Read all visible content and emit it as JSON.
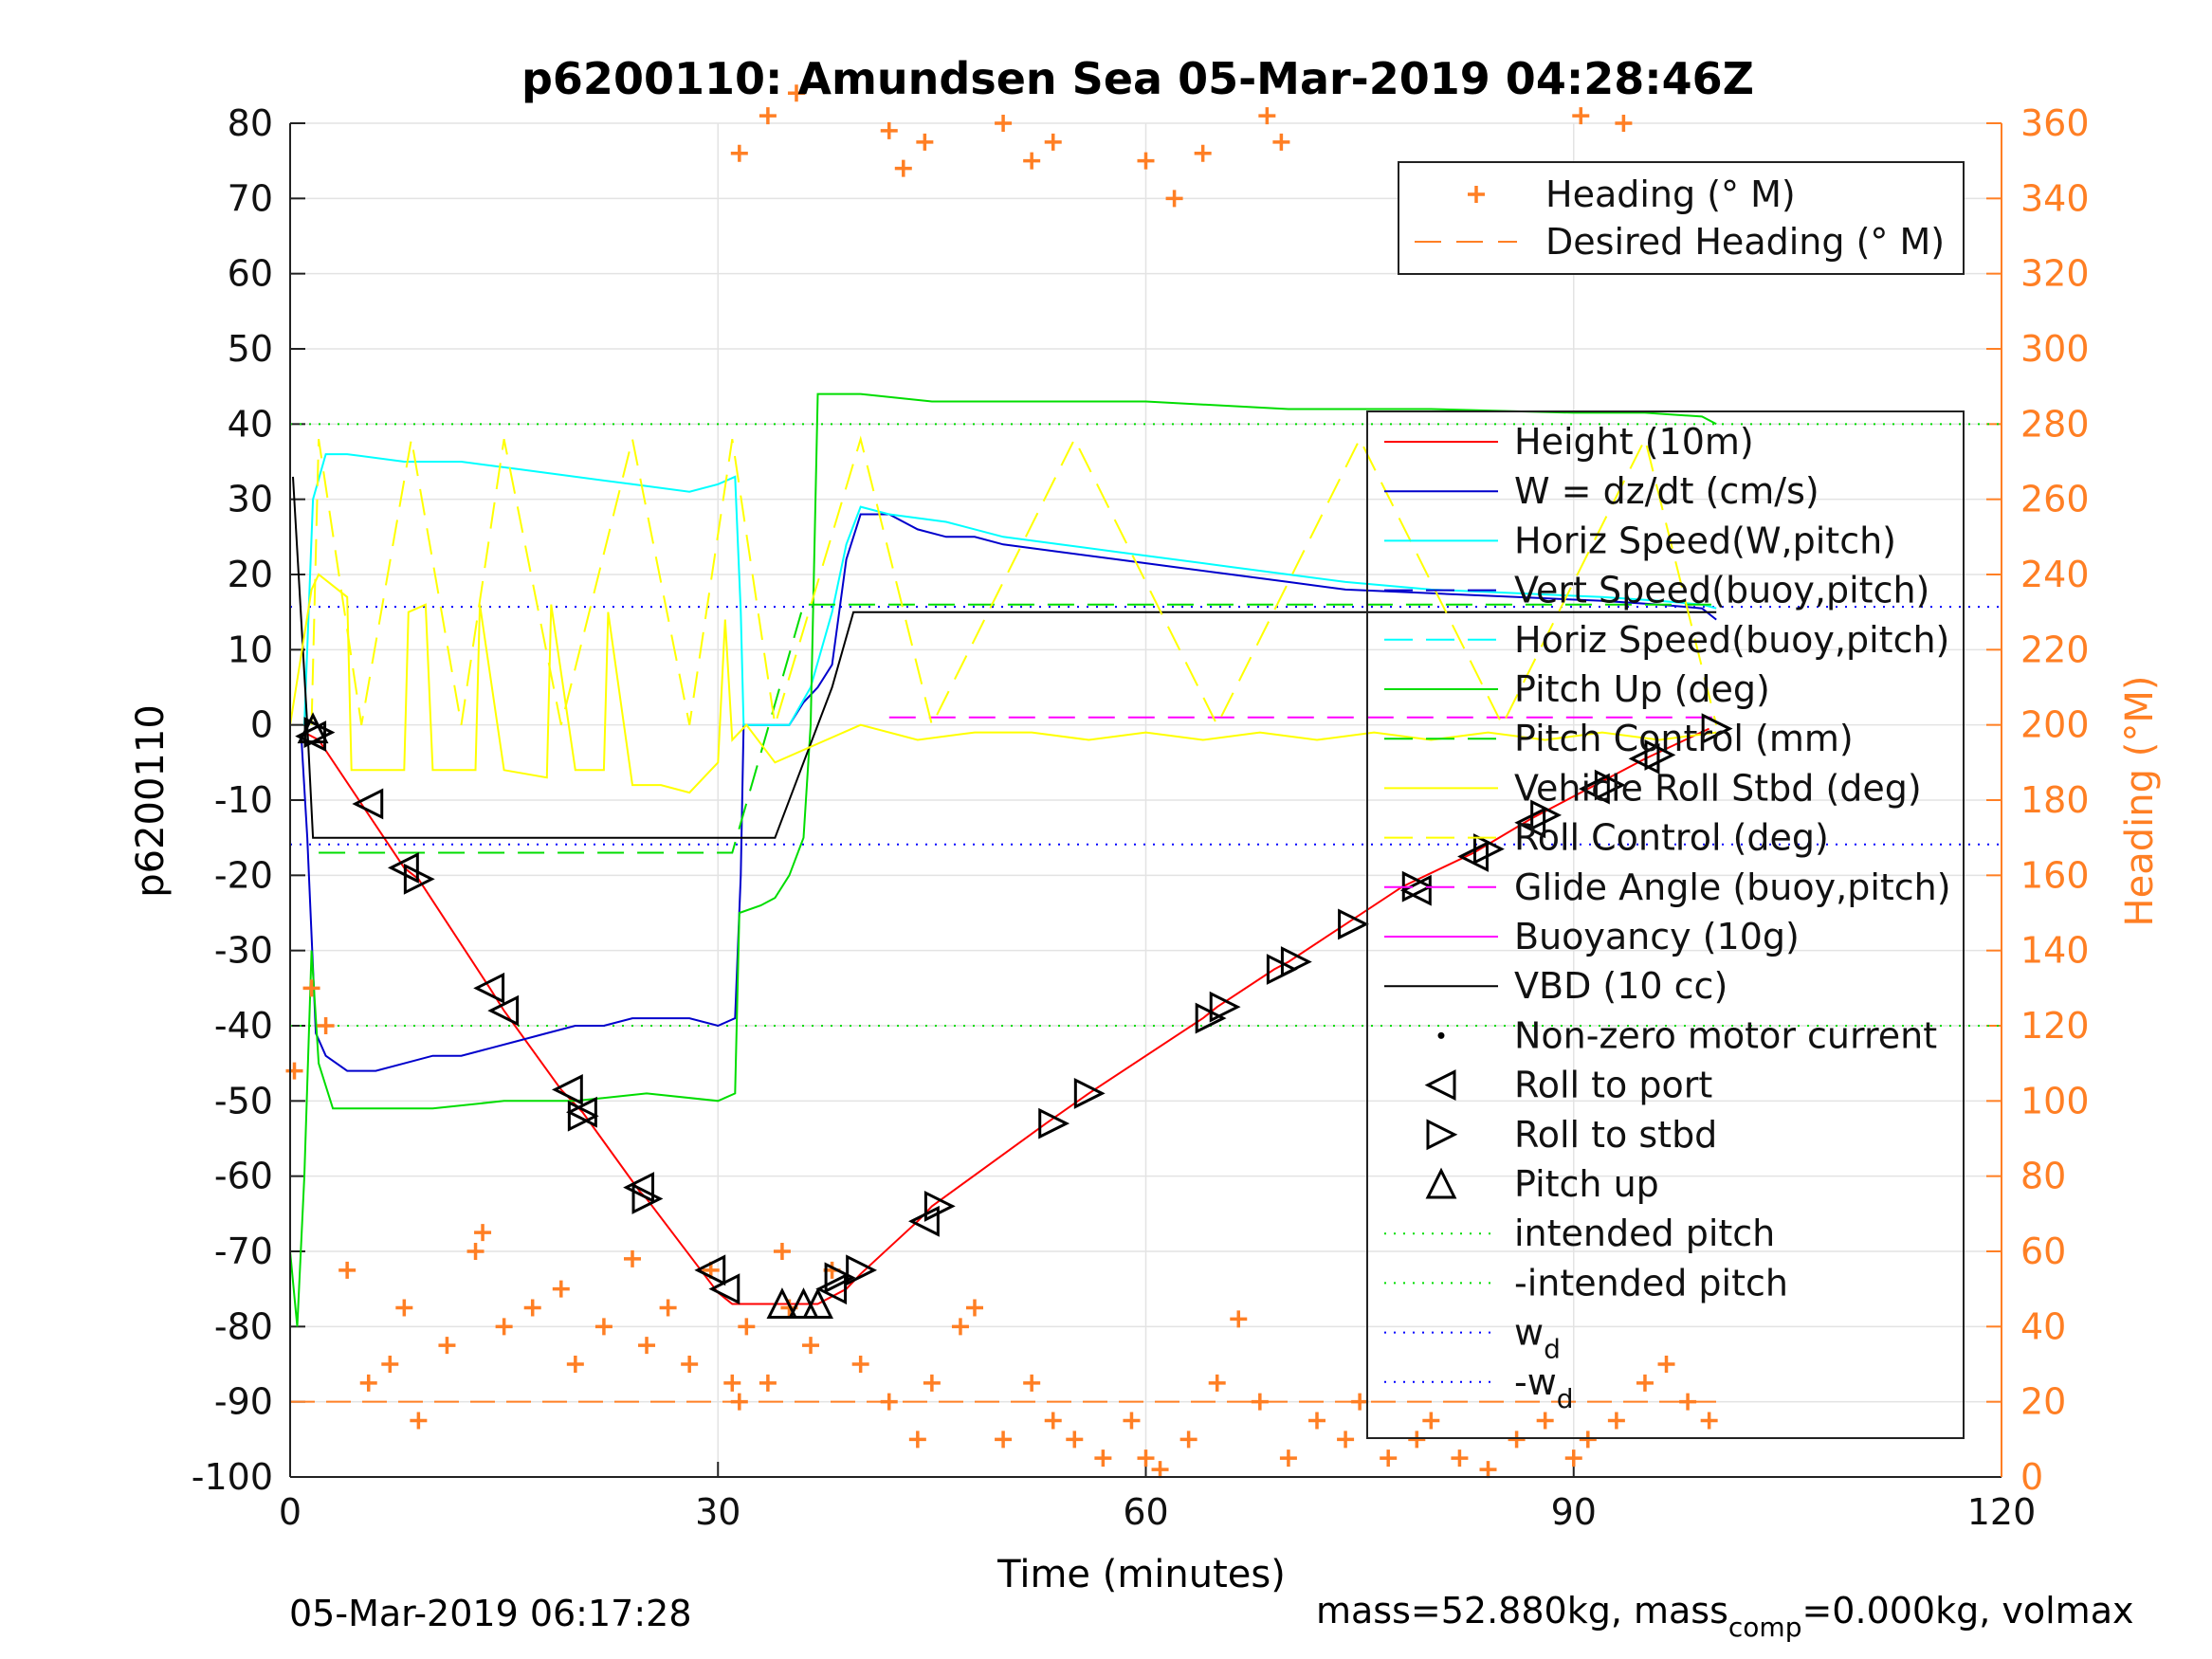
{
  "chart_data": {
    "type": "line",
    "title": "p6200110: Amundsen Sea 05-Mar-2019 04:28:46Z",
    "xlabel": "Time (minutes)",
    "ylabel": "p6200110",
    "y2label": "Heading (°M)",
    "xlim": [
      0,
      120
    ],
    "ylim": [
      -100,
      80
    ],
    "y2lim": [
      0,
      360
    ],
    "xticks": [
      "0",
      "30",
      "60",
      "90",
      "120"
    ],
    "yticks": [
      "80",
      "70",
      "60",
      "50",
      "40",
      "30",
      "20",
      "10",
      "0",
      "-10",
      "-20",
      "-30",
      "-40",
      "-50",
      "-60",
      "-70",
      "-80",
      "-90",
      "-100"
    ],
    "y2ticks": [
      "360",
      "340",
      "320",
      "300",
      "280",
      "260",
      "240",
      "220",
      "200",
      "180",
      "160",
      "140",
      "120",
      "100",
      "80",
      "60",
      "40",
      "20",
      "0"
    ],
    "grid": true,
    "footer_left": "05-Mar-2019 06:17:28",
    "footer_right": {
      "part1": "mass=52.880kg, mass",
      "sub": "comp",
      "part2": "=0.000kg, volmax"
    },
    "heading_legend": {
      "placement": "top-right",
      "entries": [
        {
          "label": "Heading (° M)",
          "color": "#ff7f24",
          "style": "plus"
        },
        {
          "label": "Desired Heading (° M)",
          "color": "#ff7f24",
          "style": "dash"
        }
      ]
    },
    "main_legend": {
      "placement": "right",
      "entries": [
        {
          "label": "Height (10m)",
          "color": "#ff0000",
          "style": "line"
        },
        {
          "label": "W = dz/dt (cm/s)",
          "color": "#0000cc",
          "style": "line"
        },
        {
          "label": "Horiz Speed(W,pitch)",
          "color": "#00ffff",
          "style": "line"
        },
        {
          "label": "Vert Speed(buoy,pitch)",
          "color": "#0000cc",
          "style": "dash"
        },
        {
          "label": "Horiz Speed(buoy,pitch)",
          "color": "#00ffff",
          "style": "dash"
        },
        {
          "label": "Pitch Up (deg)",
          "color": "#00dd00",
          "style": "line"
        },
        {
          "label": "Pitch Control (mm)",
          "color": "#00dd00",
          "style": "dash"
        },
        {
          "label": "Vehicle Roll Stbd (deg)",
          "color": "#ffff00",
          "style": "line"
        },
        {
          "label": "Roll Control (deg)",
          "color": "#ffff00",
          "style": "dash"
        },
        {
          "label": "Glide Angle (buoy,pitch)",
          "color": "#ff00ff",
          "style": "dash"
        },
        {
          "label": "Buoyancy (10g)",
          "color": "#ff00ff",
          "style": "line"
        },
        {
          "label": "VBD (10 cc)",
          "color": "#000000",
          "style": "line"
        },
        {
          "label": "Non-zero motor current",
          "color": "#000000",
          "style": "dot"
        },
        {
          "label": "Roll to port",
          "color": "#000000",
          "style": "tri-left"
        },
        {
          "label": "Roll to stbd",
          "color": "#000000",
          "style": "tri-right"
        },
        {
          "label": "Pitch up",
          "color": "#000000",
          "style": "tri-up"
        },
        {
          "label": "intended pitch",
          "color": "#00dd00",
          "style": "dot-line"
        },
        {
          "label": "-intended pitch",
          "color": "#00dd00",
          "style": "dot-line"
        },
        {
          "label": "w",
          "sub": "d",
          "color": "#0000ff",
          "style": "dot-line"
        },
        {
          "label": "-w",
          "sub": "d",
          "color": "#0000ff",
          "style": "dot-line"
        }
      ]
    },
    "reference_lines": [
      {
        "name": "intended pitch",
        "y": 40,
        "color": "#00dd00"
      },
      {
        "name": "-intended pitch",
        "y": -40,
        "color": "#00dd00"
      },
      {
        "name": "w_d",
        "y": 15.7,
        "color": "#0000ff"
      },
      {
        "name": "-w_d",
        "y": -15.9,
        "color": "#0000ff"
      }
    ],
    "series": [
      {
        "name": "Height (10m)",
        "color": "#ff0000",
        "x": [
          1.0,
          2,
          5,
          8,
          9,
          14,
          15,
          19,
          20.5,
          24.5,
          25,
          29,
          30,
          31,
          35,
          37,
          39,
          40,
          44,
          45,
          53,
          56,
          64,
          65,
          69,
          70,
          74,
          78,
          83,
          87,
          91,
          95,
          99.5
        ],
        "y": [
          -1,
          -2,
          -10.5,
          -19,
          -20.5,
          -35,
          -38,
          -48.5,
          -51.5,
          -62,
          -63,
          -73,
          -75.5,
          -77,
          -77,
          -77,
          -75,
          -73,
          -66,
          -64,
          -53,
          -49,
          -39,
          -37.5,
          -32.5,
          -31.5,
          -26.5,
          -21.5,
          -17,
          -12.5,
          -8.5,
          -4.5,
          -0.5
        ]
      },
      {
        "name": "W = dz/dt (cm/s)",
        "color": "#0000cc",
        "x": [
          0.8,
          1.2,
          1.8,
          2.5,
          4,
          6,
          8,
          10,
          12,
          14,
          16,
          18,
          20,
          22,
          24,
          26,
          28,
          30,
          31.2,
          31.6,
          31.8,
          33,
          35,
          36,
          37,
          38,
          39,
          40,
          42,
          44,
          46,
          48,
          50,
          54,
          58,
          62,
          66,
          70,
          74,
          80,
          86,
          92,
          96,
          99,
          100
        ],
        "y": [
          -2,
          -15,
          -41,
          -44,
          -46,
          -46,
          -45,
          -44,
          -44,
          -43,
          -42,
          -41,
          -40,
          -40,
          -39,
          -39,
          -39,
          -40,
          -39,
          -20,
          0,
          0,
          0,
          3,
          5,
          8,
          22,
          28,
          28,
          26,
          25,
          25,
          24,
          23,
          22,
          21,
          20,
          19,
          18,
          17.5,
          17,
          16.5,
          16,
          15.5,
          14
        ]
      },
      {
        "name": "Horiz Speed(W,pitch)",
        "color": "#00ffff",
        "x": [
          1.0,
          1.6,
          2.5,
          4,
          8,
          12,
          16,
          20,
          24,
          28,
          30,
          31.2,
          31.6,
          31.8,
          33,
          35,
          36.5,
          38,
          39,
          40,
          42,
          46,
          50,
          54,
          58,
          62,
          66,
          70,
          74,
          80,
          86,
          92,
          96,
          99,
          100
        ],
        "y": [
          0,
          30,
          36,
          36,
          35,
          35,
          34,
          33,
          32,
          31,
          32,
          33,
          15,
          0,
          0,
          0,
          5,
          15,
          24,
          29,
          28,
          27,
          25,
          24,
          23,
          22,
          21,
          20,
          19,
          18,
          17.5,
          17,
          16.5,
          16,
          15.5
        ]
      },
      {
        "name": "Pitch Up (deg)",
        "color": "#00dd00",
        "x": [
          0.0,
          0.5,
          1.0,
          1.5,
          2.0,
          3,
          5,
          10,
          15,
          20,
          25,
          30,
          31.2,
          31.5,
          33,
          34,
          35,
          36,
          36.5,
          37,
          38,
          40,
          45,
          50,
          60,
          70,
          80,
          90,
          95,
          99,
          100
        ],
        "y": [
          -70,
          -80,
          -60,
          -30,
          -45,
          -51,
          -51,
          -51,
          -50,
          -50,
          -49,
          -50,
          -49,
          -25,
          -24,
          -23,
          -20,
          -15,
          0,
          44,
          44,
          44,
          43,
          43,
          43,
          42,
          42,
          41.5,
          41.5,
          41,
          40
        ]
      },
      {
        "name": "Pitch Control (mm)",
        "color": "#00dd00",
        "style": "dash",
        "x": [
          2,
          31,
          36,
          100
        ],
        "y": [
          -17,
          -17,
          16,
          16
        ]
      },
      {
        "name": "VBD (10 cc)",
        "color": "#000000",
        "x": [
          0.2,
          1.2,
          1.6,
          34,
          36,
          38,
          39.5,
          100
        ],
        "y": [
          33,
          0,
          -15,
          -15,
          -5,
          5,
          15,
          15
        ]
      },
      {
        "name": "Glide Angle (buoy,pitch)",
        "color": "#ff00ff",
        "style": "dash",
        "x": [
          42,
          100
        ],
        "y": [
          1,
          1
        ]
      },
      {
        "name": "Vehicle Roll Stbd (deg)",
        "color": "#ffff00",
        "x": [
          0,
          1.5,
          2,
          4,
          4.3,
          6,
          8,
          8.3,
          9.5,
          10,
          13,
          13.3,
          15,
          18,
          18.3,
          20,
          22,
          22.3,
          24,
          26,
          28,
          30,
          30.5,
          31,
          32,
          34,
          40,
          44,
          48,
          52,
          56,
          60,
          64,
          68,
          72,
          76,
          80,
          84,
          88,
          92,
          96,
          100
        ],
        "y": [
          0,
          18,
          20,
          17,
          -6,
          -6,
          -6,
          15,
          16,
          -6,
          -6,
          16,
          -6,
          -7,
          16,
          -6,
          -6,
          15,
          -8,
          -8,
          -9,
          -5,
          14,
          -2,
          0,
          -5,
          0,
          -2,
          -1,
          -1,
          -2,
          -1,
          -2,
          -1,
          -2,
          -1,
          -2,
          -1,
          -2,
          -1,
          -2,
          -1
        ]
      },
      {
        "name": "Roll Control (deg)",
        "color": "#ffff00",
        "style": "dash",
        "x": [
          1.5,
          2,
          5,
          8.5,
          12,
          15,
          19,
          24,
          28,
          31,
          34,
          40,
          45,
          55,
          65,
          75,
          85,
          95,
          100
        ],
        "y": [
          0,
          38,
          0,
          38,
          0,
          38,
          0,
          38,
          0,
          38,
          0,
          38,
          0,
          38,
          0,
          38,
          0,
          38,
          0
        ]
      },
      {
        "name": "Heading (° M)",
        "axis": "y2",
        "color": "#ff7f24",
        "style": "plus",
        "x": [
          0.3,
          1.5,
          2.5,
          4,
          5.5,
          7,
          8,
          9,
          11,
          13,
          13.5,
          15,
          17,
          19,
          20,
          22,
          24,
          25,
          26.5,
          28,
          29.5,
          31,
          31.5,
          32,
          33.5,
          34.5,
          35,
          36.5,
          38,
          40,
          42,
          44,
          45,
          47,
          48,
          50,
          52,
          53.5,
          55,
          57,
          59,
          60,
          61,
          63,
          65,
          66.5,
          68,
          70,
          72,
          74,
          75,
          77,
          79,
          80,
          82,
          84,
          86,
          88,
          90,
          91,
          93,
          95,
          96.5,
          98,
          99.5,
          31.5,
          33.5,
          35.5,
          42,
          43,
          44.5,
          50,
          52,
          53.5,
          60,
          62,
          64,
          68.5,
          69.5,
          90.5,
          93.5
        ],
        "y": [
          108,
          130,
          120,
          55,
          25,
          30,
          45,
          15,
          35,
          60,
          65,
          40,
          45,
          50,
          30,
          40,
          58,
          35,
          45,
          30,
          55,
          25,
          20,
          40,
          25,
          60,
          45,
          35,
          55,
          30,
          20,
          10,
          25,
          40,
          45,
          10,
          25,
          15,
          10,
          5,
          15,
          5,
          2,
          10,
          25,
          42,
          20,
          5,
          15,
          10,
          20,
          5,
          10,
          15,
          5,
          2,
          10,
          15,
          5,
          10,
          15,
          25,
          30,
          20,
          15,
          352,
          362,
          368,
          358,
          348,
          355,
          360,
          350,
          355,
          350,
          340,
          352,
          362,
          355,
          362,
          360
        ]
      }
    ],
    "markers": {
      "roll_to_port": [
        [
          5.5,
          -10.5
        ],
        [
          8,
          -19
        ],
        [
          14,
          -35
        ],
        [
          15,
          -38
        ],
        [
          19.5,
          -48.5
        ],
        [
          20.5,
          -51.5
        ],
        [
          24.5,
          -61.5
        ],
        [
          29.5,
          -72.5
        ],
        [
          30.5,
          -75
        ],
        [
          38,
          -75
        ],
        [
          44.5,
          -66
        ],
        [
          79,
          -22
        ],
        [
          83,
          -17.5
        ],
        [
          87,
          -13
        ],
        [
          91.5,
          -8.5
        ],
        [
          95,
          -4.5
        ],
        [
          1.5,
          -1.5
        ]
      ],
      "roll_to_stbd": [
        [
          9,
          -20.5
        ],
        [
          20.5,
          -52
        ],
        [
          25,
          -63
        ],
        [
          38.5,
          -73.5
        ],
        [
          40,
          -72.5
        ],
        [
          45.5,
          -64
        ],
        [
          53.5,
          -53
        ],
        [
          56,
          -49
        ],
        [
          64.5,
          -39
        ],
        [
          65.5,
          -37.5
        ],
        [
          69.5,
          -32.5
        ],
        [
          70.5,
          -31.5
        ],
        [
          74.5,
          -26.5
        ],
        [
          79,
          -21.5
        ],
        [
          84,
          -16.5
        ],
        [
          88,
          -12
        ],
        [
          92.5,
          -8
        ],
        [
          96,
          -4
        ],
        [
          100,
          -0.5
        ],
        [
          2,
          -1
        ]
      ],
      "pitch_up": [
        [
          34.5,
          -77
        ],
        [
          36,
          -77
        ],
        [
          37,
          -77
        ],
        [
          1.6,
          -0.5
        ]
      ]
    }
  }
}
